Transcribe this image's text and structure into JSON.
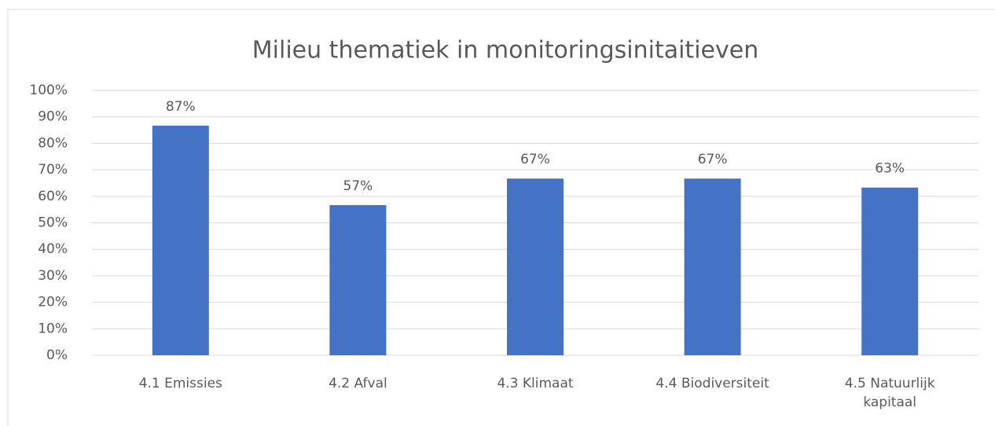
{
  "chart_data": {
    "type": "bar",
    "title": "Milieu thematiek in monitoringsinitaitieven",
    "categories": [
      "4.1 Emissies",
      "4.2 Afval",
      "4.3 Klimaat",
      "4.4 Biodiversiteit",
      "4.5 Natuurlijk kapitaal"
    ],
    "values": [
      86.7,
      56.7,
      66.7,
      66.7,
      63.3
    ],
    "value_labels": [
      "87%",
      "57%",
      "67%",
      "67%",
      "63%"
    ],
    "color": "#4472c4",
    "ylim": [
      0,
      100
    ],
    "yticks": [
      {
        "value": 0,
        "label": "0%"
      },
      {
        "value": 10,
        "label": "10%"
      },
      {
        "value": 20,
        "label": "20%"
      },
      {
        "value": 30,
        "label": "30%"
      },
      {
        "value": 40,
        "label": "40%"
      },
      {
        "value": 50,
        "label": "50%"
      },
      {
        "value": 60,
        "label": "60%"
      },
      {
        "value": 70,
        "label": "70%"
      },
      {
        "value": 80,
        "label": "80%"
      },
      {
        "value": 90,
        "label": "90%"
      },
      {
        "value": 100,
        "label": "100%"
      }
    ],
    "grid": true
  }
}
